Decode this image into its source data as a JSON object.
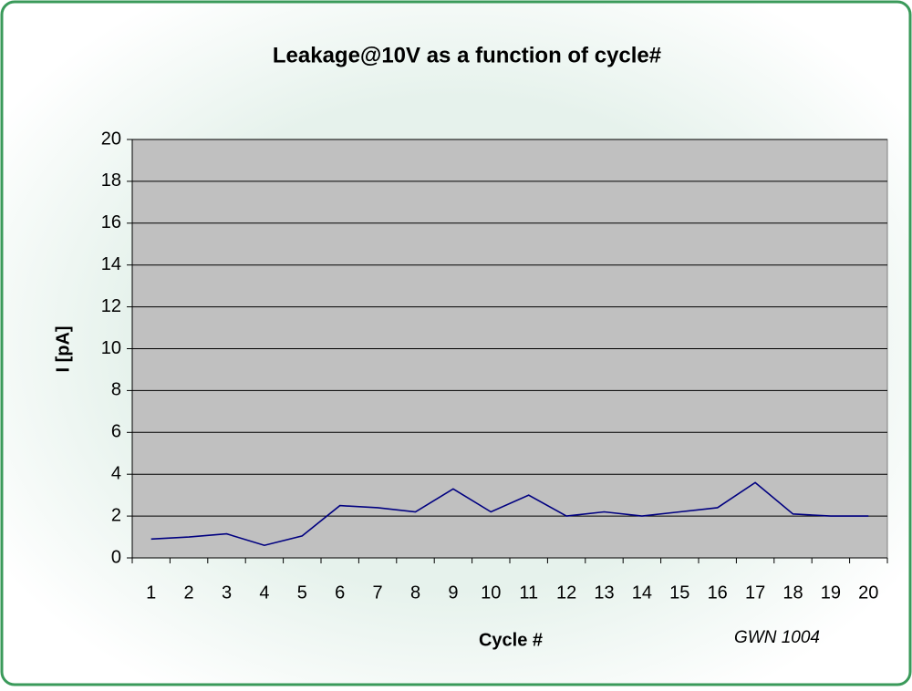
{
  "chart_data": {
    "type": "line",
    "title": "Leakage@10V as a function of cycle#",
    "x_label": "Cycle #",
    "y_label": "I [pA]",
    "annotation": "GWN 1004",
    "categories": [
      "1",
      "2",
      "3",
      "4",
      "5",
      "6",
      "7",
      "8",
      "9",
      "10",
      "11",
      "12",
      "13",
      "14",
      "15",
      "16",
      "17",
      "18",
      "19",
      "20"
    ],
    "values": [
      0.9,
      1.0,
      1.15,
      0.6,
      1.05,
      2.5,
      2.4,
      2.2,
      3.3,
      2.2,
      3.0,
      2.0,
      2.2,
      2.0,
      2.2,
      2.4,
      3.6,
      2.1,
      2.0,
      2.0
    ],
    "color": "#000080",
    "ylim": [
      0,
      20
    ],
    "yticks": [
      0,
      2,
      4,
      6,
      8,
      10,
      12,
      14,
      16,
      18,
      20
    ],
    "grid": true
  }
}
